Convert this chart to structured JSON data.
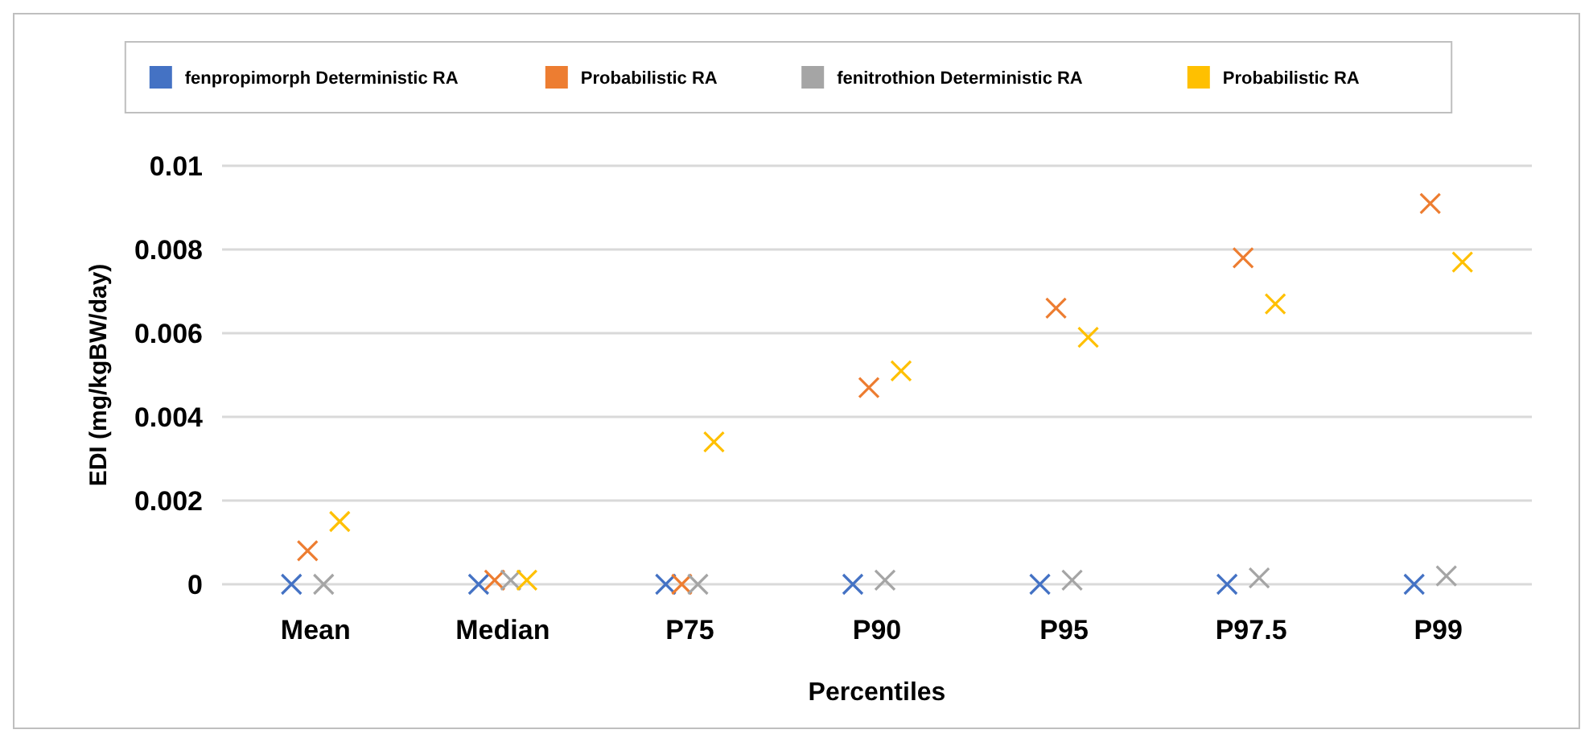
{
  "chart_data": {
    "type": "scatter",
    "xlabel": "Percentiles",
    "ylabel": "EDI (mg/kgBW/day)",
    "categories": [
      "Mean",
      "Median",
      "P75",
      "P90",
      "P95",
      "P97.5",
      "P99"
    ],
    "series": [
      {
        "name": "fenpropimorph Deterministic RA",
        "color": "#4472c4",
        "values": [
          0,
          0,
          0,
          0,
          0,
          0,
          0
        ]
      },
      {
        "name": "Probabilistic RA",
        "color": "#ed7d31",
        "values": [
          0.0008,
          0.0001,
          0,
          0.0047,
          0.0066,
          0.0078,
          0.0091
        ]
      },
      {
        "name": "fenitrothion Deterministic RA",
        "color": "#a5a5a5",
        "values": [
          0,
          0.0001,
          0,
          0.0001,
          0.0001,
          0.00015,
          0.0002
        ]
      },
      {
        "name": "Probabilistic RA",
        "color": "#ffc000",
        "values": [
          0.0015,
          0.0001,
          0.0034,
          0.0051,
          0.0059,
          0.0067,
          0.0077
        ]
      }
    ],
    "ylim": [
      0,
      0.01
    ],
    "yticks": [
      0,
      0.002,
      0.004,
      0.006,
      0.008,
      0.01
    ],
    "grid": "y",
    "legend": "top",
    "marker": "cross"
  }
}
